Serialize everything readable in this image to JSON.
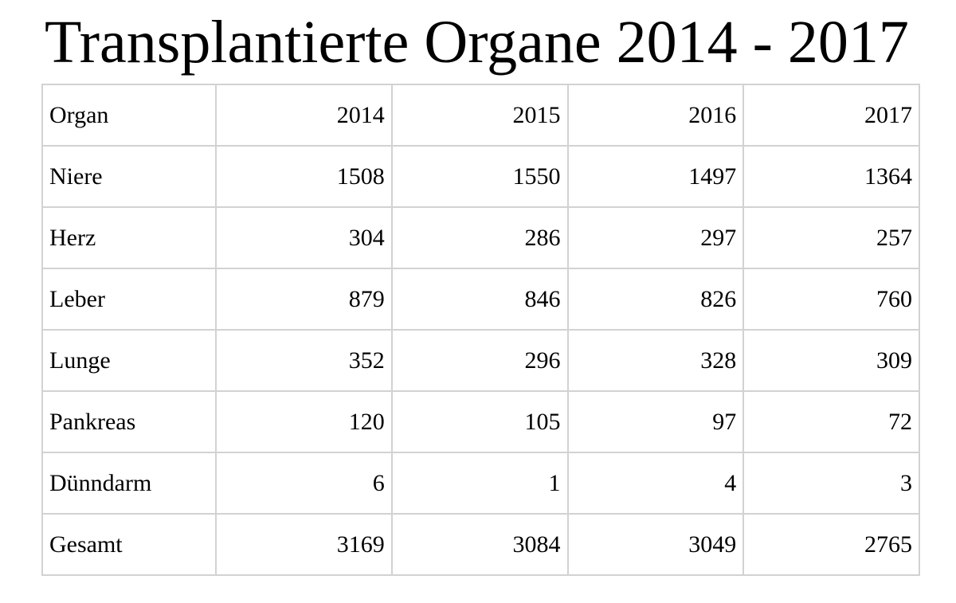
{
  "title": "Transplantierte Organe 2014 - 2017",
  "colors": {
    "border": "#d2d2d2",
    "text": "#000000",
    "background": "#ffffff"
  },
  "chart_data": {
    "type": "table",
    "title": "Transplantierte Organe 2014 - 2017",
    "columns": [
      "Organ",
      "2014",
      "2015",
      "2016",
      "2017"
    ],
    "rows": [
      {
        "organ": "Niere",
        "values": [
          1508,
          1550,
          1497,
          1364
        ]
      },
      {
        "organ": "Herz",
        "values": [
          304,
          286,
          297,
          257
        ]
      },
      {
        "organ": "Leber",
        "values": [
          879,
          846,
          826,
          760
        ]
      },
      {
        "organ": "Lunge",
        "values": [
          352,
          296,
          328,
          309
        ]
      },
      {
        "organ": "Pankreas",
        "values": [
          120,
          105,
          97,
          72
        ]
      },
      {
        "organ": "Dünndarm",
        "values": [
          6,
          1,
          4,
          3
        ]
      },
      {
        "organ": "Gesamt",
        "values": [
          3169,
          3084,
          3049,
          2765
        ]
      }
    ],
    "layout": {
      "grid": "full-borders",
      "label_column_align": "left",
      "value_columns_align": "right"
    }
  }
}
